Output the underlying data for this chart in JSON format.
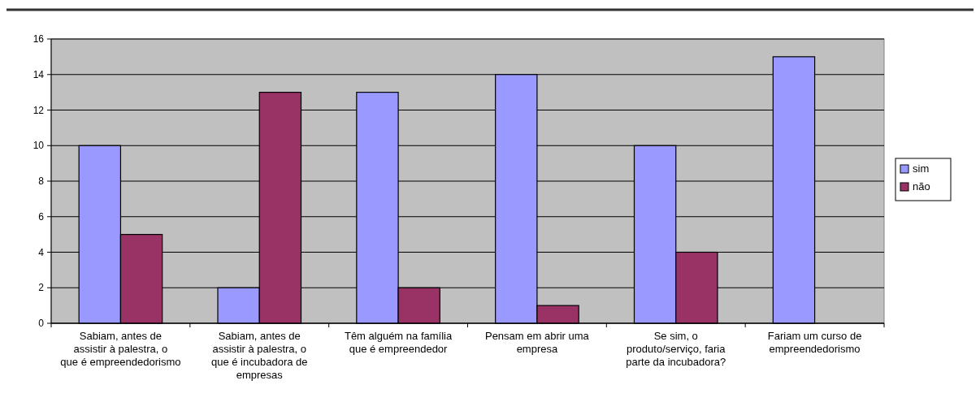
{
  "chart_data": {
    "type": "bar",
    "categories": [
      "Sabiam, antes de assistir à palestra, o que é empreendedorismo",
      "Sabiam, antes de assistir à palestra, o que é incubadora de empresas",
      "Têm alguém na família que é empreendedor",
      "Pensam em abrir uma empresa",
      "Se sim, o produto/serviço, faria parte da incubadora?",
      "Fariam um curso de empreendedorismo"
    ],
    "series": [
      {
        "name": "sim",
        "color": "#9999ff",
        "values": [
          10,
          2,
          13,
          14,
          10,
          15
        ]
      },
      {
        "name": "não",
        "color": "#993366",
        "values": [
          5,
          13,
          2,
          1,
          4,
          0
        ]
      }
    ],
    "ylim": [
      0,
      16
    ],
    "yticks": [
      0,
      2,
      4,
      6,
      8,
      10,
      12,
      14,
      16
    ],
    "grid": "y",
    "legend": "right"
  }
}
